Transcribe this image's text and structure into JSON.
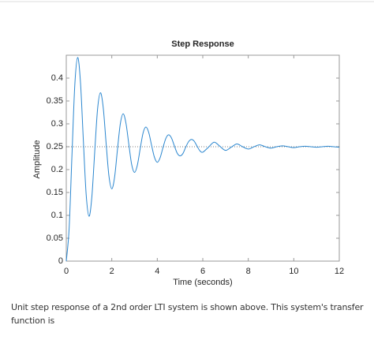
{
  "chart_data": {
    "type": "line",
    "title": "Step Response",
    "xlabel": "Time (seconds)",
    "ylabel": "Amplitude",
    "x": [
      0,
      0.125,
      0.25,
      0.375,
      0.5,
      0.625,
      0.75,
      0.875,
      1,
      1.125,
      1.25,
      1.375,
      1.5,
      1.625,
      1.75,
      1.875,
      2,
      2.125,
      2.25,
      2.375,
      2.5,
      2.625,
      2.75,
      2.875,
      3,
      3.125,
      3.25,
      3.375,
      3.5,
      3.625,
      3.75,
      3.875,
      4,
      4.125,
      4.25,
      4.375,
      4.5,
      4.625,
      4.75,
      4.875,
      5,
      5.125,
      5.25,
      5.375,
      5.5,
      5.625,
      5.75,
      5.875,
      6,
      6.25,
      6.5,
      6.75,
      7,
      7.25,
      7.5,
      7.75,
      8,
      8.25,
      8.5,
      8.75,
      9,
      9.25,
      9.5,
      9.75,
      10,
      10.25,
      10.5,
      10.75,
      11,
      11.25,
      11.5,
      11.75,
      12
    ],
    "series": [
      {
        "color": "#2a86cf",
        "values": [
          0,
          0.071,
          0.232,
          0.385,
          0.445,
          0.39,
          0.264,
          0.145,
          0.098,
          0.141,
          0.239,
          0.332,
          0.368,
          0.335,
          0.258,
          0.186,
          0.158,
          0.184,
          0.244,
          0.3,
          0.322,
          0.301,
          0.255,
          0.211,
          0.194,
          0.21,
          0.246,
          0.28,
          0.293,
          0.281,
          0.253,
          0.227,
          0.216,
          0.226,
          0.248,
          0.268,
          0.276,
          0.269,
          0.252,
          0.236,
          0.23,
          0.235,
          0.249,
          0.261,
          0.266,
          0.262,
          0.251,
          0.241,
          0.238,
          0.249,
          0.26,
          0.251,
          0.242,
          0.249,
          0.256,
          0.25,
          0.245,
          0.25,
          0.254,
          0.25,
          0.247,
          0.25,
          0.252,
          0.25,
          0.248,
          0.25,
          0.251,
          0.25,
          0.249,
          0.25,
          0.251,
          0.25,
          0.249
        ]
      }
    ],
    "reference_line": 0.25,
    "xlim": [
      0,
      12
    ],
    "xticks": [
      0,
      2,
      4,
      6,
      8,
      10,
      12
    ],
    "ylim": [
      0,
      0.45
    ],
    "yticks": [
      0,
      0.05,
      0.1,
      0.15,
      0.2,
      0.25,
      0.3,
      0.35,
      0.4
    ]
  },
  "caption": "Unit step response of a 2nd order  LTI system is shown above. This system's transfer function is"
}
